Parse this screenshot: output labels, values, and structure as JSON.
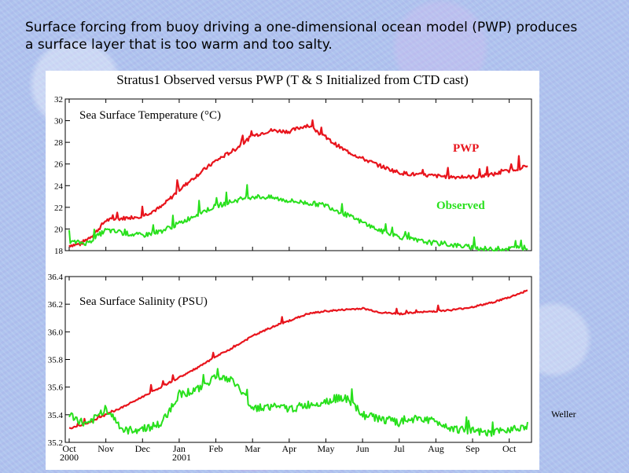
{
  "slide": {
    "caption_line1": "Surface forcing from buoy driving a one-dimensional ocean model (PWP) produces",
    "caption_line2": "a surface layer that is too warm and too salty.",
    "credit": "Weller"
  },
  "chart_data": [
    {
      "type": "line",
      "title": "Stratus1 Observed versus PWP  (T & S Initialized from CTD cast)",
      "panel_label": "Sea Surface Temperature (°C)",
      "ylim": [
        18,
        32
      ],
      "yticks": [
        "18",
        "20",
        "22",
        "24",
        "26",
        "28",
        "30",
        "32"
      ],
      "x_tick_labels": [
        "Oct",
        "Nov",
        "Dec",
        "Jan",
        "Feb",
        "Mar",
        "Apr",
        "May",
        "Jun",
        "Jul",
        "Aug",
        "Sep",
        "Oct"
      ],
      "x_year_labels": [
        "2000",
        "2001"
      ],
      "series": [
        {
          "name": "PWP",
          "color": "#e8141c",
          "x": [
            0,
            0.3,
            0.7,
            1.0,
            1.5,
            2.0,
            2.5,
            3.0,
            3.5,
            4.0,
            4.5,
            5.0,
            5.5,
            6.0,
            6.5,
            7.0,
            7.5,
            8.0,
            8.5,
            9.0,
            9.5,
            10.0,
            10.5,
            11.0,
            11.5,
            12.0,
            12.5
          ],
          "values": [
            18.5,
            18.6,
            19.6,
            20.8,
            21.0,
            21.2,
            22.0,
            23.6,
            25.0,
            26.3,
            27.3,
            28.6,
            29.1,
            29.0,
            29.6,
            28.4,
            27.3,
            26.5,
            25.8,
            25.2,
            25.0,
            24.9,
            24.8,
            24.8,
            25.0,
            25.4,
            25.8
          ]
        },
        {
          "name": "Observed",
          "color": "#28e01c",
          "x": [
            0,
            0.5,
            1.0,
            1.5,
            2.0,
            2.5,
            3.0,
            3.5,
            4.0,
            4.5,
            5.0,
            5.5,
            6.0,
            6.5,
            7.0,
            7.5,
            8.0,
            8.5,
            9.0,
            9.5,
            10.0,
            10.5,
            11.0,
            11.5,
            12.0,
            12.5
          ],
          "values": [
            18.8,
            18.7,
            19.9,
            19.6,
            19.4,
            19.8,
            20.5,
            21.4,
            22.1,
            22.6,
            23.0,
            22.9,
            22.6,
            22.4,
            22.2,
            21.4,
            20.6,
            19.8,
            19.3,
            18.9,
            18.7,
            18.5,
            18.3,
            18.1,
            18.2,
            18.3
          ]
        }
      ]
    },
    {
      "type": "line",
      "panel_label": "Sea Surface Salinity (PSU)",
      "ylim": [
        35.2,
        36.4
      ],
      "yticks": [
        "35.2",
        "35.4",
        "35.6",
        "35.8",
        "36.0",
        "36.2",
        "36.4"
      ],
      "x_tick_labels": [
        "Oct",
        "Nov",
        "Dec",
        "Jan",
        "Feb",
        "Mar",
        "Apr",
        "May",
        "Jun",
        "Jul",
        "Aug",
        "Sep",
        "Oct"
      ],
      "x_year_labels": [
        "2000",
        "2001"
      ],
      "series": [
        {
          "name": "PWP",
          "color": "#e8141c",
          "x": [
            0,
            0.5,
            1.0,
            1.5,
            2.0,
            2.5,
            3.0,
            3.5,
            4.0,
            4.5,
            5.0,
            5.5,
            6.0,
            6.5,
            7.0,
            7.5,
            8.0,
            8.5,
            9.0,
            9.5,
            10.0,
            10.5,
            11.0,
            11.5,
            12.0,
            12.5
          ],
          "values": [
            35.3,
            35.34,
            35.4,
            35.46,
            35.53,
            35.6,
            35.67,
            35.74,
            35.82,
            35.89,
            35.97,
            36.03,
            36.08,
            36.13,
            36.15,
            36.16,
            36.17,
            36.14,
            36.13,
            36.14,
            36.15,
            36.16,
            36.18,
            36.21,
            36.25,
            36.3
          ]
        },
        {
          "name": "Observed",
          "color": "#28e01c",
          "x": [
            0,
            0.5,
            1.0,
            1.5,
            2.0,
            2.5,
            3.0,
            3.5,
            4.0,
            4.5,
            5.0,
            5.5,
            6.0,
            6.5,
            7.0,
            7.5,
            8.0,
            8.5,
            9.0,
            9.5,
            10.0,
            10.5,
            11.0,
            11.5,
            12.0,
            12.5
          ],
          "values": [
            35.4,
            35.32,
            35.45,
            35.28,
            35.3,
            35.33,
            35.55,
            35.58,
            35.68,
            35.64,
            35.45,
            35.46,
            35.44,
            35.47,
            35.5,
            35.53,
            35.4,
            35.37,
            35.34,
            35.38,
            35.35,
            35.3,
            35.28,
            35.26,
            35.3,
            35.32
          ]
        }
      ]
    }
  ]
}
